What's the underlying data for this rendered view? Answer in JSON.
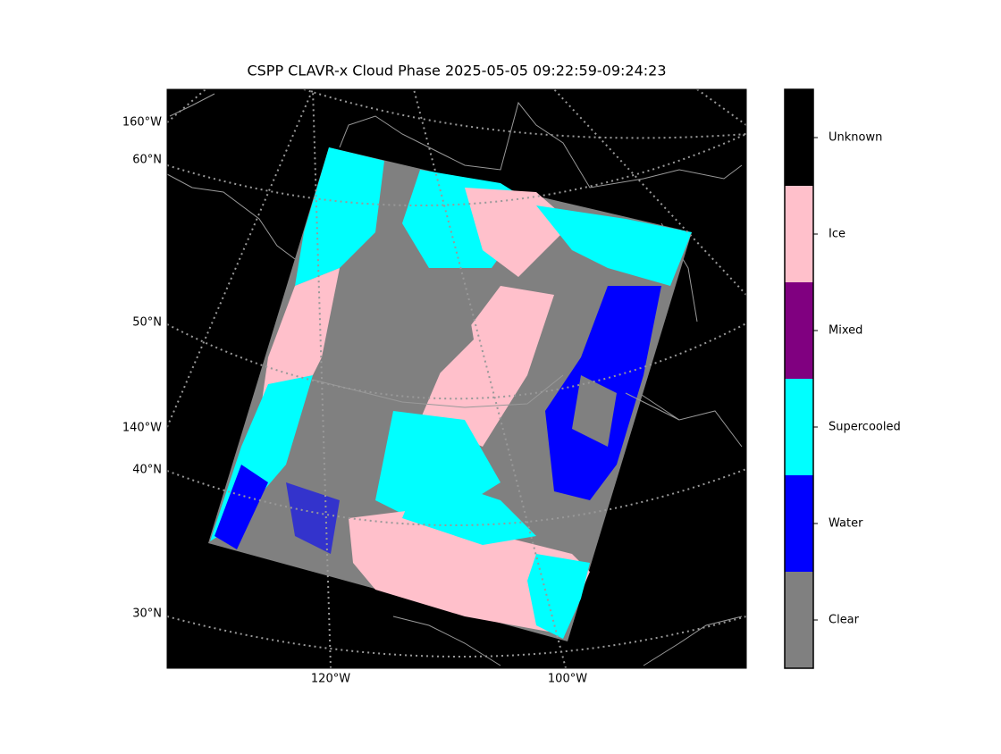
{
  "title": "CSPP CLAVR-x Cloud Phase 2025-05-05 09:22:59-09:24:23",
  "map": {
    "left_labels": [
      "160°W",
      "60°N",
      "50°N",
      "140°W",
      "40°N",
      "30°N"
    ],
    "bottom_labels": [
      "120°W",
      "100°W"
    ]
  },
  "colorbar": {
    "classes": [
      {
        "label": "Clear",
        "color": "#808080"
      },
      {
        "label": "Water",
        "color": "#0000ff"
      },
      {
        "label": "Supercooled",
        "color": "#00ffff"
      },
      {
        "label": "Mixed",
        "color": "#800080"
      },
      {
        "label": "Ice",
        "color": "#ffc0cb"
      },
      {
        "label": "Unknown",
        "color": "#000000"
      }
    ]
  }
}
